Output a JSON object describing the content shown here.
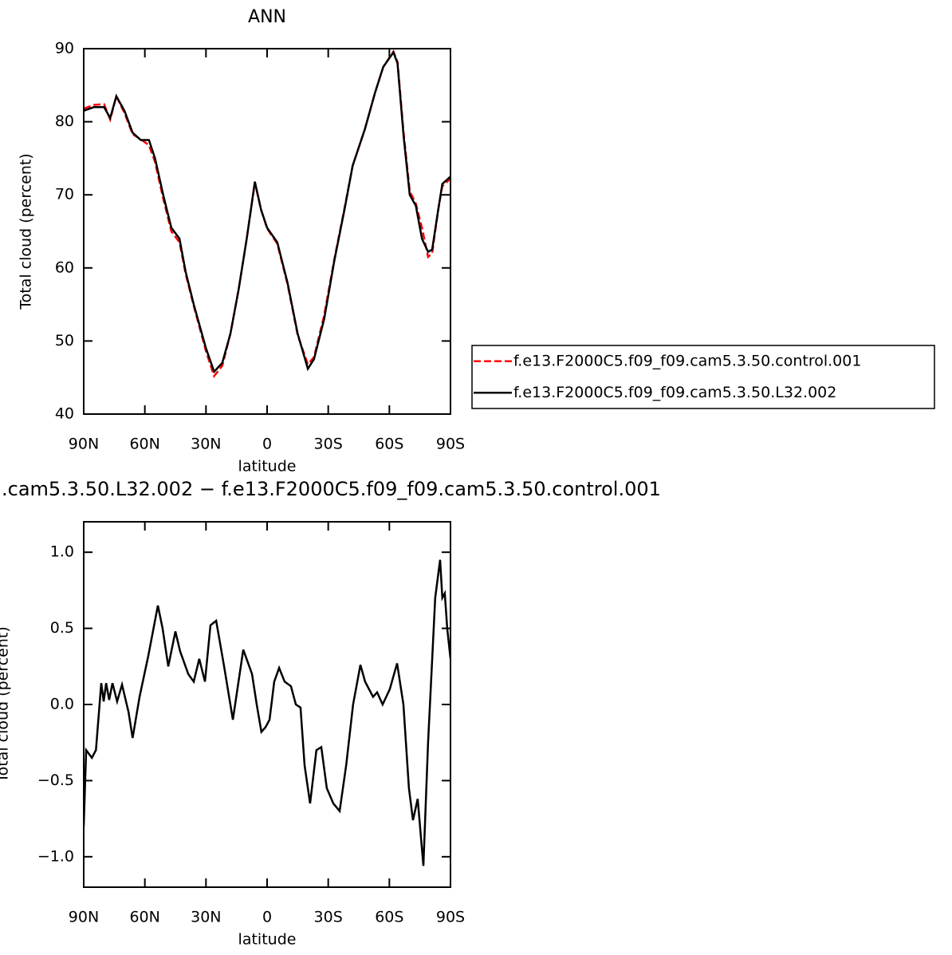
{
  "chart_data": [
    {
      "type": "line",
      "title": "ANN",
      "xlabel": "latitude",
      "ylabel": "Total cloud (percent)",
      "xlim": [
        90,
        -90
      ],
      "xticks": [
        {
          "value": 90,
          "label": "90N"
        },
        {
          "value": 60,
          "label": "60N"
        },
        {
          "value": 30,
          "label": "30N"
        },
        0,
        {
          "value": -30,
          "label": "30S"
        },
        {
          "value": -60,
          "label": "60S"
        },
        {
          "value": -90,
          "label": "90S"
        }
      ],
      "ylim": [
        40,
        90
      ],
      "yticks": [
        40,
        50,
        60,
        70,
        80,
        90
      ],
      "x": [
        90,
        85,
        80,
        77,
        74,
        70,
        66,
        62,
        58,
        55,
        51,
        47,
        43,
        40,
        36,
        30,
        26,
        22,
        18,
        14,
        10,
        6,
        3,
        0,
        -5,
        -10,
        -15,
        -20,
        -23,
        -28,
        -33,
        -38,
        -42,
        -48,
        -53,
        -57,
        -62,
        -64,
        -67,
        -70,
        -73,
        -76,
        -79,
        -81,
        -84,
        -86,
        -90
      ],
      "series": [
        {
          "name": "f.e13.F2000C5.f09_f09.cam5.3.50.control.001",
          "color": "#ff0000",
          "linestyle": "dashed",
          "values": [
            81.8,
            82.3,
            82.4,
            80.3,
            83.5,
            81.2,
            78.3,
            77.6,
            76.8,
            74.5,
            69.5,
            65,
            63.5,
            59.2,
            54.8,
            48.6,
            45.2,
            46.6,
            51,
            57,
            64,
            71.7,
            68,
            65.4,
            63.3,
            57.8,
            50.8,
            46.8,
            47.8,
            53.5,
            61.2,
            68.2,
            74,
            79,
            84,
            87.5,
            89.6,
            88.2,
            78.5,
            70.5,
            68.8,
            65.5,
            61.5,
            62,
            68,
            71.2,
            72.2
          ]
        },
        {
          "name": "f.e13.F2000C5.f09_f09.cam5.3.50.L32.002",
          "color": "#000000",
          "linestyle": "solid",
          "values": [
            81.5,
            82,
            82,
            80.5,
            83.5,
            81.5,
            78.5,
            77.5,
            77.5,
            75,
            70,
            65.5,
            64,
            59.5,
            55,
            49,
            45.8,
            47,
            51,
            57,
            64,
            71.8,
            68,
            65.5,
            63.5,
            58,
            51,
            46.2,
            47.5,
            53,
            61,
            68,
            74,
            79,
            84,
            87.5,
            89.5,
            88,
            78,
            70,
            68.5,
            64,
            62.2,
            62.5,
            68,
            71.5,
            72.5
          ]
        }
      ]
    },
    {
      "type": "line",
      "title": ".cam5.3.50.L32.002 − f.e13.F2000C5.f09_f09.cam5.3.50.control.001",
      "xlabel": "latitude",
      "ylabel": "Total cloud (percent)",
      "xlim": [
        90,
        -90
      ],
      "xticks": [
        {
          "value": 90,
          "label": "90N"
        },
        {
          "value": 60,
          "label": "60N"
        },
        {
          "value": 30,
          "label": "30N"
        },
        0,
        {
          "value": -30,
          "label": "30S"
        },
        {
          "value": -60,
          "label": "60S"
        },
        {
          "value": -90,
          "label": "90S"
        }
      ],
      "ylim": [
        -1.2,
        1.2
      ],
      "yticks": [
        {
          "value": -1,
          "label": "−1.0"
        },
        {
          "value": -0.5,
          "label": "−0.5"
        },
        {
          "value": 0,
          "label": "0.0"
        },
        {
          "value": 0.5,
          "label": "0.5"
        },
        {
          "value": 1,
          "label": "1.0"
        }
      ],
      "x": [
        90,
        88.8,
        86,
        84,
        81.4,
        80.2,
        79,
        77.5,
        75.9,
        73.6,
        71.2,
        68,
        66,
        62.6,
        58.3,
        53.6,
        51.3,
        48.5,
        45,
        42.7,
        38.7,
        36,
        33.3,
        30.5,
        27.8,
        25,
        21.1,
        16.8,
        11.7,
        7.4,
        5.1,
        2.8,
        0.8,
        -1.2,
        -3.5,
        -5.9,
        -8.6,
        -11.7,
        -14.1,
        -16.4,
        -18.4,
        -21.1,
        -24.2,
        -26.6,
        -29.3,
        -32.5,
        -35.6,
        -38.8,
        -42.2,
        -45.8,
        -48.1,
        -52,
        -54,
        -56.7,
        -60.2,
        -63.8,
        -66.9,
        -69.6,
        -71.6,
        -73.9,
        -76.7,
        -79,
        -82.5,
        -84.9,
        -86,
        -87.2,
        -88.4,
        -90
      ],
      "series": [
        {
          "color": "#000000",
          "linestyle": "solid",
          "values": [
            -0.8,
            -0.3,
            -0.35,
            -0.3,
            0.14,
            0.02,
            0.14,
            0.03,
            0.14,
            0.02,
            0.13,
            -0.05,
            -0.22,
            0.05,
            0.32,
            0.65,
            0.5,
            0.25,
            0.48,
            0.35,
            0.2,
            0.15,
            0.3,
            0.15,
            0.52,
            0.55,
            0.25,
            -0.1,
            0.36,
            0.2,
            0.0,
            -0.18,
            -0.15,
            -0.1,
            0.15,
            0.24,
            0.15,
            0.12,
            0.0,
            -0.02,
            -0.4,
            -0.65,
            -0.3,
            -0.28,
            -0.55,
            -0.65,
            -0.7,
            -0.4,
            0.0,
            0.26,
            0.15,
            0.05,
            0.08,
            0.0,
            0.1,
            0.27,
            0.0,
            -0.55,
            -0.76,
            -0.62,
            -1.06,
            -0.25,
            0.7,
            0.95,
            0.7,
            0.73,
            0.5,
            0.3
          ]
        }
      ]
    }
  ]
}
